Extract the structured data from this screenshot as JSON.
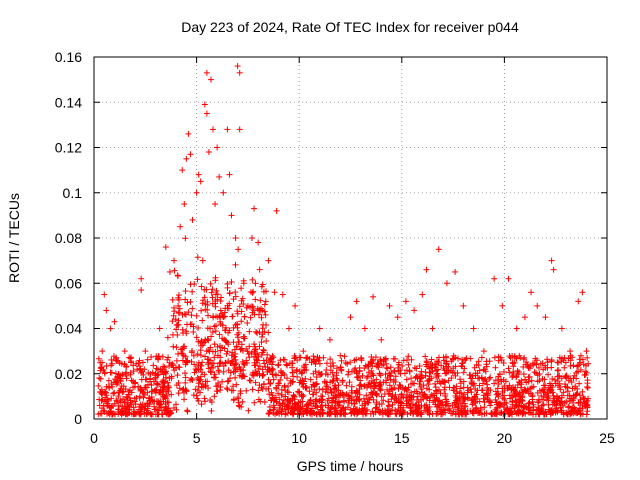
{
  "chart_data": {
    "type": "scatter",
    "title": "Day 223 of 2024, Rate Of TEC Index for receiver p044",
    "xlabel": "GPS time / hours",
    "ylabel": "ROTI / TECUs",
    "xlim": [
      0,
      25
    ],
    "ylim": [
      0,
      0.16
    ],
    "x_ticks": [
      "0",
      "5",
      "10",
      "15",
      "20",
      "25"
    ],
    "y_ticks": [
      "0",
      "0.02",
      "0.04",
      "0.06",
      "0.08",
      "0.1",
      "0.12",
      "0.14",
      "0.16"
    ],
    "grid": true,
    "marker": "+",
    "point_color": "#ff0000",
    "series": [
      {
        "points": [
          [
            0.3,
            0.012
          ],
          [
            0.4,
            0.03
          ],
          [
            0.5,
            0.055
          ],
          [
            0.6,
            0.048
          ],
          [
            0.8,
            0.04
          ],
          [
            1.0,
            0.043
          ],
          [
            1.2,
            0.02
          ],
          [
            1.5,
            0.03
          ],
          [
            1.8,
            0.025
          ],
          [
            2.1,
            0.022
          ],
          [
            2.3,
            0.062
          ],
          [
            2.3,
            0.057
          ],
          [
            2.5,
            0.03
          ],
          [
            2.8,
            0.015
          ],
          [
            3.2,
            0.04
          ],
          [
            3.5,
            0.02
          ],
          [
            3.6,
            0.036
          ],
          [
            3.5,
            0.076
          ],
          [
            3.7,
            0.065
          ],
          [
            3.9,
            0.07
          ],
          [
            4.1,
            0.05
          ],
          [
            4.2,
            0.085
          ],
          [
            4.3,
            0.11
          ],
          [
            4.4,
            0.095
          ],
          [
            4.5,
            0.115
          ],
          [
            4.6,
            0.126
          ],
          [
            4.7,
            0.117
          ],
          [
            4.8,
            0.088
          ],
          [
            5.0,
            0.1
          ],
          [
            5.1,
            0.108
          ],
          [
            5.2,
            0.105
          ],
          [
            5.3,
            0.07
          ],
          [
            5.4,
            0.139
          ],
          [
            5.5,
            0.135
          ],
          [
            5.5,
            0.153
          ],
          [
            5.6,
            0.118
          ],
          [
            5.7,
            0.15
          ],
          [
            5.8,
            0.128
          ],
          [
            5.9,
            0.095
          ],
          [
            6.0,
            0.12
          ],
          [
            6.1,
            0.107
          ],
          [
            6.3,
            0.1
          ],
          [
            6.5,
            0.128
          ],
          [
            6.6,
            0.108
          ],
          [
            6.7,
            0.09
          ],
          [
            6.9,
            0.08
          ],
          [
            7.0,
            0.156
          ],
          [
            7.1,
            0.153
          ],
          [
            7.1,
            0.128
          ],
          [
            7.3,
            0.06
          ],
          [
            7.5,
            0.05
          ],
          [
            7.7,
            0.08
          ],
          [
            7.8,
            0.093
          ],
          [
            8.0,
            0.078
          ],
          [
            8.2,
            0.048
          ],
          [
            8.5,
            0.07
          ],
          [
            8.8,
            0.056
          ],
          [
            8.9,
            0.092
          ],
          [
            9.2,
            0.055
          ],
          [
            9.5,
            0.04
          ],
          [
            9.8,
            0.05
          ],
          [
            10.2,
            0.03
          ],
          [
            10.6,
            0.025
          ],
          [
            11.0,
            0.04
          ],
          [
            11.5,
            0.035
          ],
          [
            12.0,
            0.028
          ],
          [
            12.5,
            0.045
          ],
          [
            12.8,
            0.052
          ],
          [
            13.2,
            0.04
          ],
          [
            13.6,
            0.054
          ],
          [
            14.0,
            0.035
          ],
          [
            14.4,
            0.05
          ],
          [
            14.8,
            0.045
          ],
          [
            15.2,
            0.052
          ],
          [
            15.6,
            0.048
          ],
          [
            16.0,
            0.055
          ],
          [
            16.2,
            0.066
          ],
          [
            16.5,
            0.04
          ],
          [
            16.8,
            0.075
          ],
          [
            17.2,
            0.06
          ],
          [
            17.6,
            0.065
          ],
          [
            18.0,
            0.05
          ],
          [
            18.5,
            0.04
          ],
          [
            19.0,
            0.03
          ],
          [
            19.5,
            0.062
          ],
          [
            19.9,
            0.05
          ],
          [
            20.2,
            0.062
          ],
          [
            20.6,
            0.04
          ],
          [
            21.0,
            0.045
          ],
          [
            21.3,
            0.056
          ],
          [
            21.6,
            0.05
          ],
          [
            22.0,
            0.045
          ],
          [
            22.3,
            0.07
          ],
          [
            22.4,
            0.066
          ],
          [
            22.8,
            0.04
          ],
          [
            23.2,
            0.03
          ],
          [
            23.6,
            0.052
          ],
          [
            23.8,
            0.056
          ],
          [
            24.0,
            0.03
          ]
        ]
      }
    ],
    "dense_band": {
      "x_range": [
        0.2,
        24.1
      ],
      "y_range": [
        0.002,
        0.028
      ],
      "note_count": 2500
    }
  }
}
